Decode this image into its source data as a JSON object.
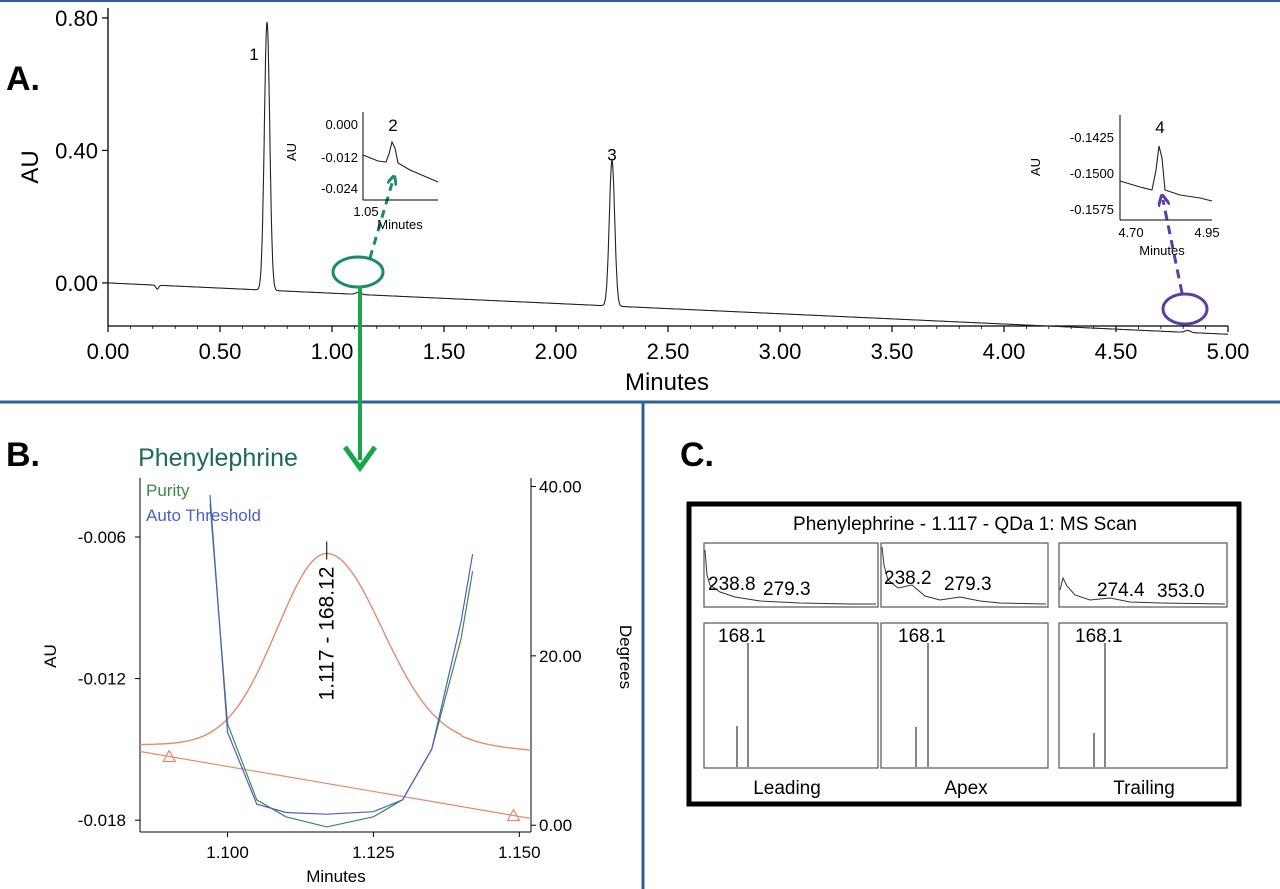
{
  "panels": {
    "a": "A.",
    "b": "B.",
    "c": "C."
  },
  "colors": {
    "divider": "#2f5f97",
    "trace": "#222222",
    "green": "#1b8a6b",
    "purple": "#5b3ea8",
    "orange": "#e8896a",
    "purity_green": "#3d8a45",
    "threshold_blue": "#4a5fc9"
  },
  "chart_data": [
    {
      "id": "A",
      "type": "line",
      "xlabel": "Minutes",
      "ylabel": "AU",
      "xlim": [
        0,
        5
      ],
      "ylim": [
        -0.13,
        0.83
      ],
      "x_ticks": [
        "0.00",
        "0.50",
        "1.00",
        "1.50",
        "2.00",
        "2.50",
        "3.00",
        "3.50",
        "4.00",
        "4.50",
        "5.00"
      ],
      "y_ticks": [
        "0.00",
        "0.40",
        "0.80"
      ],
      "baseline": {
        "x": [
          0,
          5
        ],
        "y": [
          0.0,
          -0.155
        ]
      },
      "peaks": [
        {
          "label": "1",
          "x": 0.71,
          "height": 0.81
        },
        {
          "label": "2",
          "x": 1.117,
          "height": 0.006
        },
        {
          "label": "3",
          "x": 2.25,
          "height": 0.44
        },
        {
          "label": "4",
          "x": 4.82,
          "height": 0.006
        }
      ],
      "insets": [
        {
          "peak_label": "2",
          "xlabel": "Minutes",
          "ylabel": "AU",
          "x_ticks": [
            "1.05"
          ],
          "y_ticks": [
            "0.000",
            "-0.012",
            "-0.024"
          ]
        },
        {
          "peak_label": "4",
          "xlabel": "Minutes",
          "ylabel": "AU",
          "x_ticks": [
            "4.70",
            "4.95"
          ],
          "y_ticks": [
            "-0.1425",
            "-0.1500",
            "-0.1575"
          ]
        }
      ]
    },
    {
      "id": "B",
      "type": "line",
      "title": "Phenylephrine",
      "xlabel": "Minutes",
      "ylabel": "AU",
      "y2label": "Degrees",
      "xlim": [
        1.085,
        1.152
      ],
      "ylim": [
        -0.0185,
        -0.0035
      ],
      "y2lim": [
        -0.8,
        41
      ],
      "x_ticks": [
        "1.100",
        "1.125",
        "1.150"
      ],
      "y_ticks": [
        "-0.006",
        "-0.012",
        "-0.018"
      ],
      "y2_ticks": [
        "40.00",
        "20.00",
        "0.00"
      ],
      "peak_annotation": "1.117 - 168.12",
      "legend": [
        "Purity",
        "Auto Threshold"
      ],
      "chromatogram_peak": {
        "x": 1.117,
        "apex": -0.0067,
        "start_x": 1.09,
        "start_y": -0.0153,
        "end_x": 1.149,
        "end_y": -0.0178
      },
      "series": [
        {
          "name": "Purity",
          "x": [
            1.097,
            1.1,
            1.105,
            1.11,
            1.117,
            1.125,
            1.13,
            1.135,
            1.14,
            1.142
          ],
          "y": [
            38,
            12,
            3.0,
            1.0,
            -0.2,
            1.0,
            3.0,
            9,
            22,
            30
          ]
        },
        {
          "name": "Auto Threshold",
          "x": [
            1.097,
            1.1,
            1.105,
            1.11,
            1.117,
            1.125,
            1.13,
            1.135,
            1.14,
            1.142
          ],
          "y": [
            39,
            11,
            2.5,
            1.5,
            1.3,
            1.6,
            3.0,
            9,
            24,
            32
          ]
        }
      ]
    },
    {
      "id": "C",
      "type": "line",
      "title": "Phenylephrine - 1.117 - QDa 1: MS Scan",
      "spectra": [
        {
          "label": "Leading",
          "top_labels": [
            "238.8",
            "279.3"
          ],
          "main_peak": "168.1"
        },
        {
          "label": "Apex",
          "top_labels": [
            "238.2",
            "279.3"
          ],
          "main_peak": "168.1"
        },
        {
          "label": "Trailing",
          "top_labels": [
            "274.4",
            "353.0"
          ],
          "main_peak": "168.1"
        }
      ]
    }
  ]
}
